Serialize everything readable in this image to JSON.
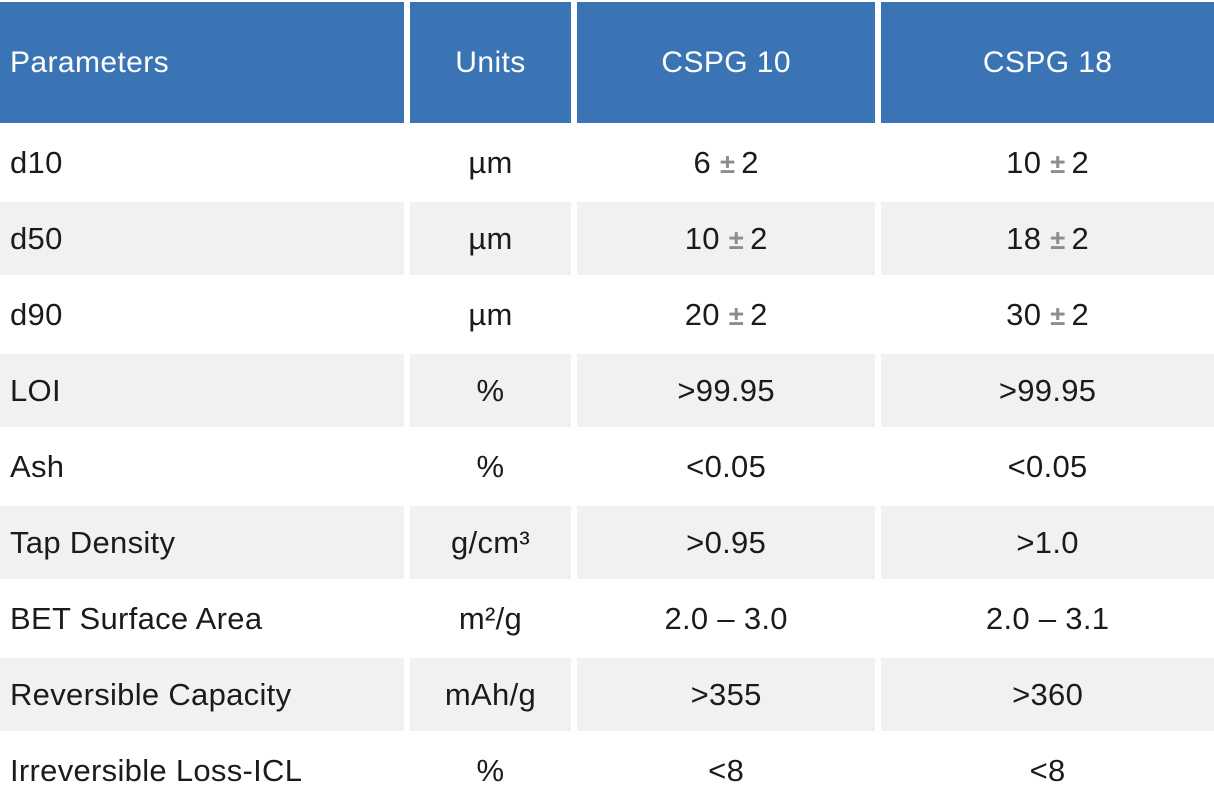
{
  "colors": {
    "header_bg": "#3b74b5",
    "header_text": "#ffffff",
    "row_alt_bg": "#f1f1f2",
    "body_text": "#1b1b1b",
    "plus_minus_gray": "#8d8d8d"
  },
  "table": {
    "headers": [
      "Parameters",
      "Units",
      "CSPG 10",
      "CSPG 18"
    ],
    "rows": [
      {
        "param": "d10",
        "unit": "µm",
        "c10": {
          "v1": "6",
          "pm": "±",
          "v2": "2"
        },
        "c18": {
          "v1": "10",
          "pm": "±",
          "v2": "2"
        }
      },
      {
        "param": "d50",
        "unit": "µm",
        "c10": {
          "v1": "10",
          "pm": "±",
          "v2": "2"
        },
        "c18": {
          "v1": "18",
          "pm": "±",
          "v2": "2"
        }
      },
      {
        "param": "d90",
        "unit": "µm",
        "c10": {
          "v1": "20",
          "pm": "±",
          "v2": "2"
        },
        "c18": {
          "v1": "30",
          "pm": "±",
          "v2": "2"
        }
      },
      {
        "param": "LOI",
        "unit": "%",
        "c10": {
          "v1": ">99.95",
          "pm": "",
          "v2": ""
        },
        "c18": {
          "v1": ">99.95",
          "pm": "",
          "v2": ""
        }
      },
      {
        "param": "Ash",
        "unit": "%",
        "c10": {
          "v1": "<0.05",
          "pm": "",
          "v2": ""
        },
        "c18": {
          "v1": "<0.05",
          "pm": "",
          "v2": ""
        }
      },
      {
        "param": "Tap Density",
        "unit": "g/cm³",
        "c10": {
          "v1": ">0.95",
          "pm": "",
          "v2": ""
        },
        "c18": {
          "v1": ">1.0",
          "pm": "",
          "v2": ""
        }
      },
      {
        "param": "BET Surface Area",
        "unit": "m²/g",
        "c10": {
          "v1": "2.0 – 3.0",
          "pm": "",
          "v2": ""
        },
        "c18": {
          "v1": "2.0 – 3.1",
          "pm": "",
          "v2": ""
        }
      },
      {
        "param": "Reversible Capacity",
        "unit": "mAh/g",
        "c10": {
          "v1": ">355",
          "pm": "",
          "v2": ""
        },
        "c18": {
          "v1": ">360",
          "pm": "",
          "v2": ""
        }
      },
      {
        "param": "Irreversible Loss-ICL",
        "unit": "%",
        "c10": {
          "v1": "<8",
          "pm": "",
          "v2": ""
        },
        "c18": {
          "v1": "<8",
          "pm": "",
          "v2": ""
        }
      }
    ]
  },
  "chart_data": {
    "type": "table",
    "title": "",
    "columns": [
      "Parameters",
      "Units",
      "CSPG 10",
      "CSPG 18"
    ],
    "rows": [
      [
        "d10",
        "µm",
        "6 ± 2",
        "10 ± 2"
      ],
      [
        "d50",
        "µm",
        "10 ± 2",
        "18 ± 2"
      ],
      [
        "d90",
        "µm",
        "20 ± 2",
        "30 ± 2"
      ],
      [
        "LOI",
        "%",
        ">99.95",
        ">99.95"
      ],
      [
        "Ash",
        "%",
        "<0.05",
        "<0.05"
      ],
      [
        "Tap Density",
        "g/cm³",
        ">0.95",
        ">1.0"
      ],
      [
        "BET Surface Area",
        "m²/g",
        "2.0 – 3.0",
        "2.0 – 3.1"
      ],
      [
        "Reversible Capacity",
        "mAh/g",
        ">355",
        ">360"
      ],
      [
        "Irreversible Loss-ICL",
        "%",
        "<8",
        "<8"
      ]
    ]
  }
}
